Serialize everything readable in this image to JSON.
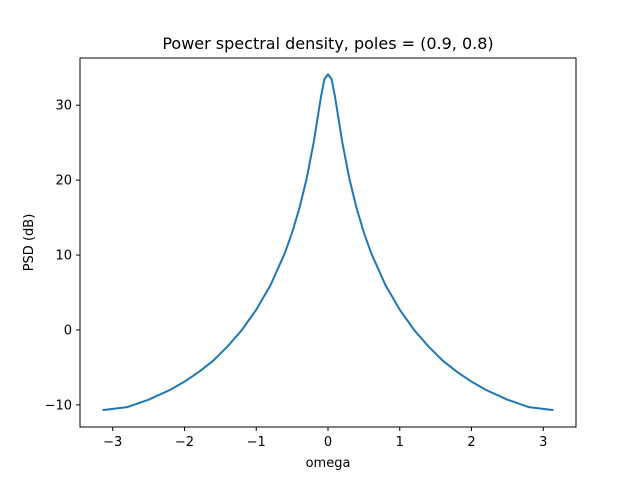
{
  "chart_data": {
    "type": "line",
    "title": "Power spectral density, poles = (0.9, 0.8)",
    "xlabel": "omega",
    "ylabel": "PSD (dB)",
    "xlim": [
      -3.4558,
      3.4558
    ],
    "ylim": [
      -12.95,
      36.3
    ],
    "xticks": [
      -3,
      -2,
      -1,
      0,
      1,
      2,
      3
    ],
    "xtick_labels": [
      "−3",
      "−2",
      "−1",
      "0",
      "1",
      "2",
      "3"
    ],
    "yticks": [
      -10,
      0,
      10,
      20,
      30
    ],
    "ytick_labels": [
      "−10",
      "0",
      "10",
      "20",
      "30"
    ],
    "grid": false,
    "series": [
      {
        "color": "#1f77b4",
        "x": [
          -3.1416,
          -2.8,
          -2.5,
          -2.2,
          -2.0,
          -1.8,
          -1.6,
          -1.4,
          -1.2,
          -1.0,
          -0.8,
          -0.6,
          -0.5,
          -0.4,
          -0.3,
          -0.2,
          -0.15,
          -0.1,
          -0.05,
          0.0,
          0.05,
          0.1,
          0.15,
          0.2,
          0.3,
          0.4,
          0.5,
          0.6,
          0.8,
          1.0,
          1.2,
          1.4,
          1.6,
          1.8,
          2.0,
          2.2,
          2.5,
          2.8,
          3.1416
        ],
        "values": [
          -10.7,
          -10.3,
          -9.3,
          -8.0,
          -6.9,
          -5.6,
          -4.1,
          -2.2,
          0.0,
          2.7,
          6.0,
          10.3,
          13.0,
          16.2,
          20.1,
          25.0,
          28.0,
          31.0,
          33.5,
          34.1,
          33.5,
          31.0,
          28.0,
          25.0,
          20.1,
          16.2,
          13.0,
          10.3,
          6.0,
          2.7,
          0.0,
          -2.2,
          -4.1,
          -5.6,
          -6.9,
          -8.0,
          -9.3,
          -10.3,
          -10.7
        ]
      }
    ]
  }
}
